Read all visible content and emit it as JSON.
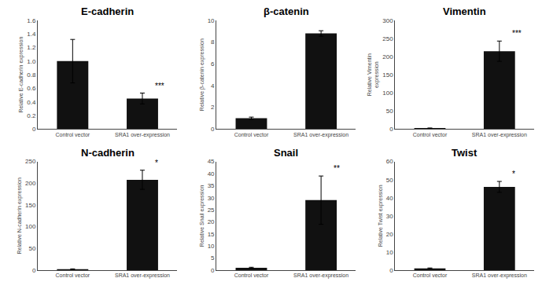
{
  "chart_data": [
    {
      "type": "bar",
      "title": "E-cadherin",
      "ylabel": "Relative E-cadherin expression",
      "categories": [
        "Control vector",
        "SRA1 over-expression"
      ],
      "values": [
        1.0,
        0.45
      ],
      "errors": [
        0.32,
        0.08
      ],
      "color": "#111111",
      "ylim": [
        0,
        1.6
      ],
      "yticks": [
        0,
        0.2,
        0.4,
        0.6,
        0.8,
        {
          "value": 1.0,
          "label": "1.0"
        },
        1.2,
        1.4,
        1.6
      ],
      "grid": false,
      "annotations": [
        {
          "text": "***",
          "x": "SRA1 over-expression"
        }
      ]
    },
    {
      "type": "bar",
      "title": "β-catenin",
      "ylabel": "Relative β-catenin expression",
      "categories": [
        "Control vector",
        "SRA1 over-expression"
      ],
      "values": [
        1.0,
        8.8
      ],
      "errors": [
        0.1,
        0.25
      ],
      "color": "#111111",
      "ylim": [
        0,
        10
      ],
      "yticks": [
        0,
        2,
        4,
        6,
        8,
        10
      ],
      "grid": false
    },
    {
      "type": "bar",
      "title": "Vimentin",
      "ylabel": "Relative Vimentin\nexpression",
      "categories": [
        "Control vector",
        "SRA1 over-expression"
      ],
      "values": [
        2.0,
        215.0
      ],
      "errors": [
        1.0,
        28.0
      ],
      "color": "#111111",
      "ylim": [
        0,
        300
      ],
      "yticks": [
        0,
        50,
        100,
        150,
        200,
        250,
        300
      ],
      "grid": false,
      "annotations": [
        {
          "text": "***",
          "x": "SRA1 over-expression"
        }
      ]
    },
    {
      "type": "bar",
      "title": "N-cadherin",
      "ylabel": "Relative N-cadherin expression",
      "categories": [
        "Control vector",
        "SRA1 over-expression"
      ],
      "values": [
        2.0,
        208.0
      ],
      "errors": [
        1.0,
        22.0
      ],
      "color": "#111111",
      "ylim": [
        0,
        250
      ],
      "yticks": [
        0,
        50,
        100,
        150,
        200,
        250
      ],
      "grid": false,
      "annotations": [
        {
          "text": "*",
          "x": "SRA1 over-expression"
        }
      ]
    },
    {
      "type": "bar",
      "title": "Snail",
      "ylabel": "Relative Snail expression",
      "categories": [
        "Control vector",
        "SRA1 over-expression"
      ],
      "values": [
        1.0,
        29.0
      ],
      "errors": [
        0.2,
        10.0
      ],
      "color": "#111111",
      "ylim": [
        0,
        45
      ],
      "yticks": [
        0,
        5,
        10,
        15,
        20,
        25,
        30,
        35,
        40,
        45
      ],
      "grid": false,
      "annotations": [
        {
          "text": "**",
          "x": "SRA1 over-expression"
        }
      ]
    },
    {
      "type": "bar",
      "title": "Twist",
      "ylabel": "Relative Twist expression",
      "categories": [
        "Control vector",
        "SRA1 over-expression"
      ],
      "values": [
        1.0,
        46.0
      ],
      "errors": [
        0.2,
        3.0
      ],
      "color": "#111111",
      "ylim": [
        0,
        60
      ],
      "yticks": [
        0,
        10,
        20,
        30,
        40,
        50,
        60
      ],
      "grid": false,
      "annotations": [
        {
          "text": "*",
          "x": "SRA1 over-expression"
        }
      ]
    }
  ]
}
